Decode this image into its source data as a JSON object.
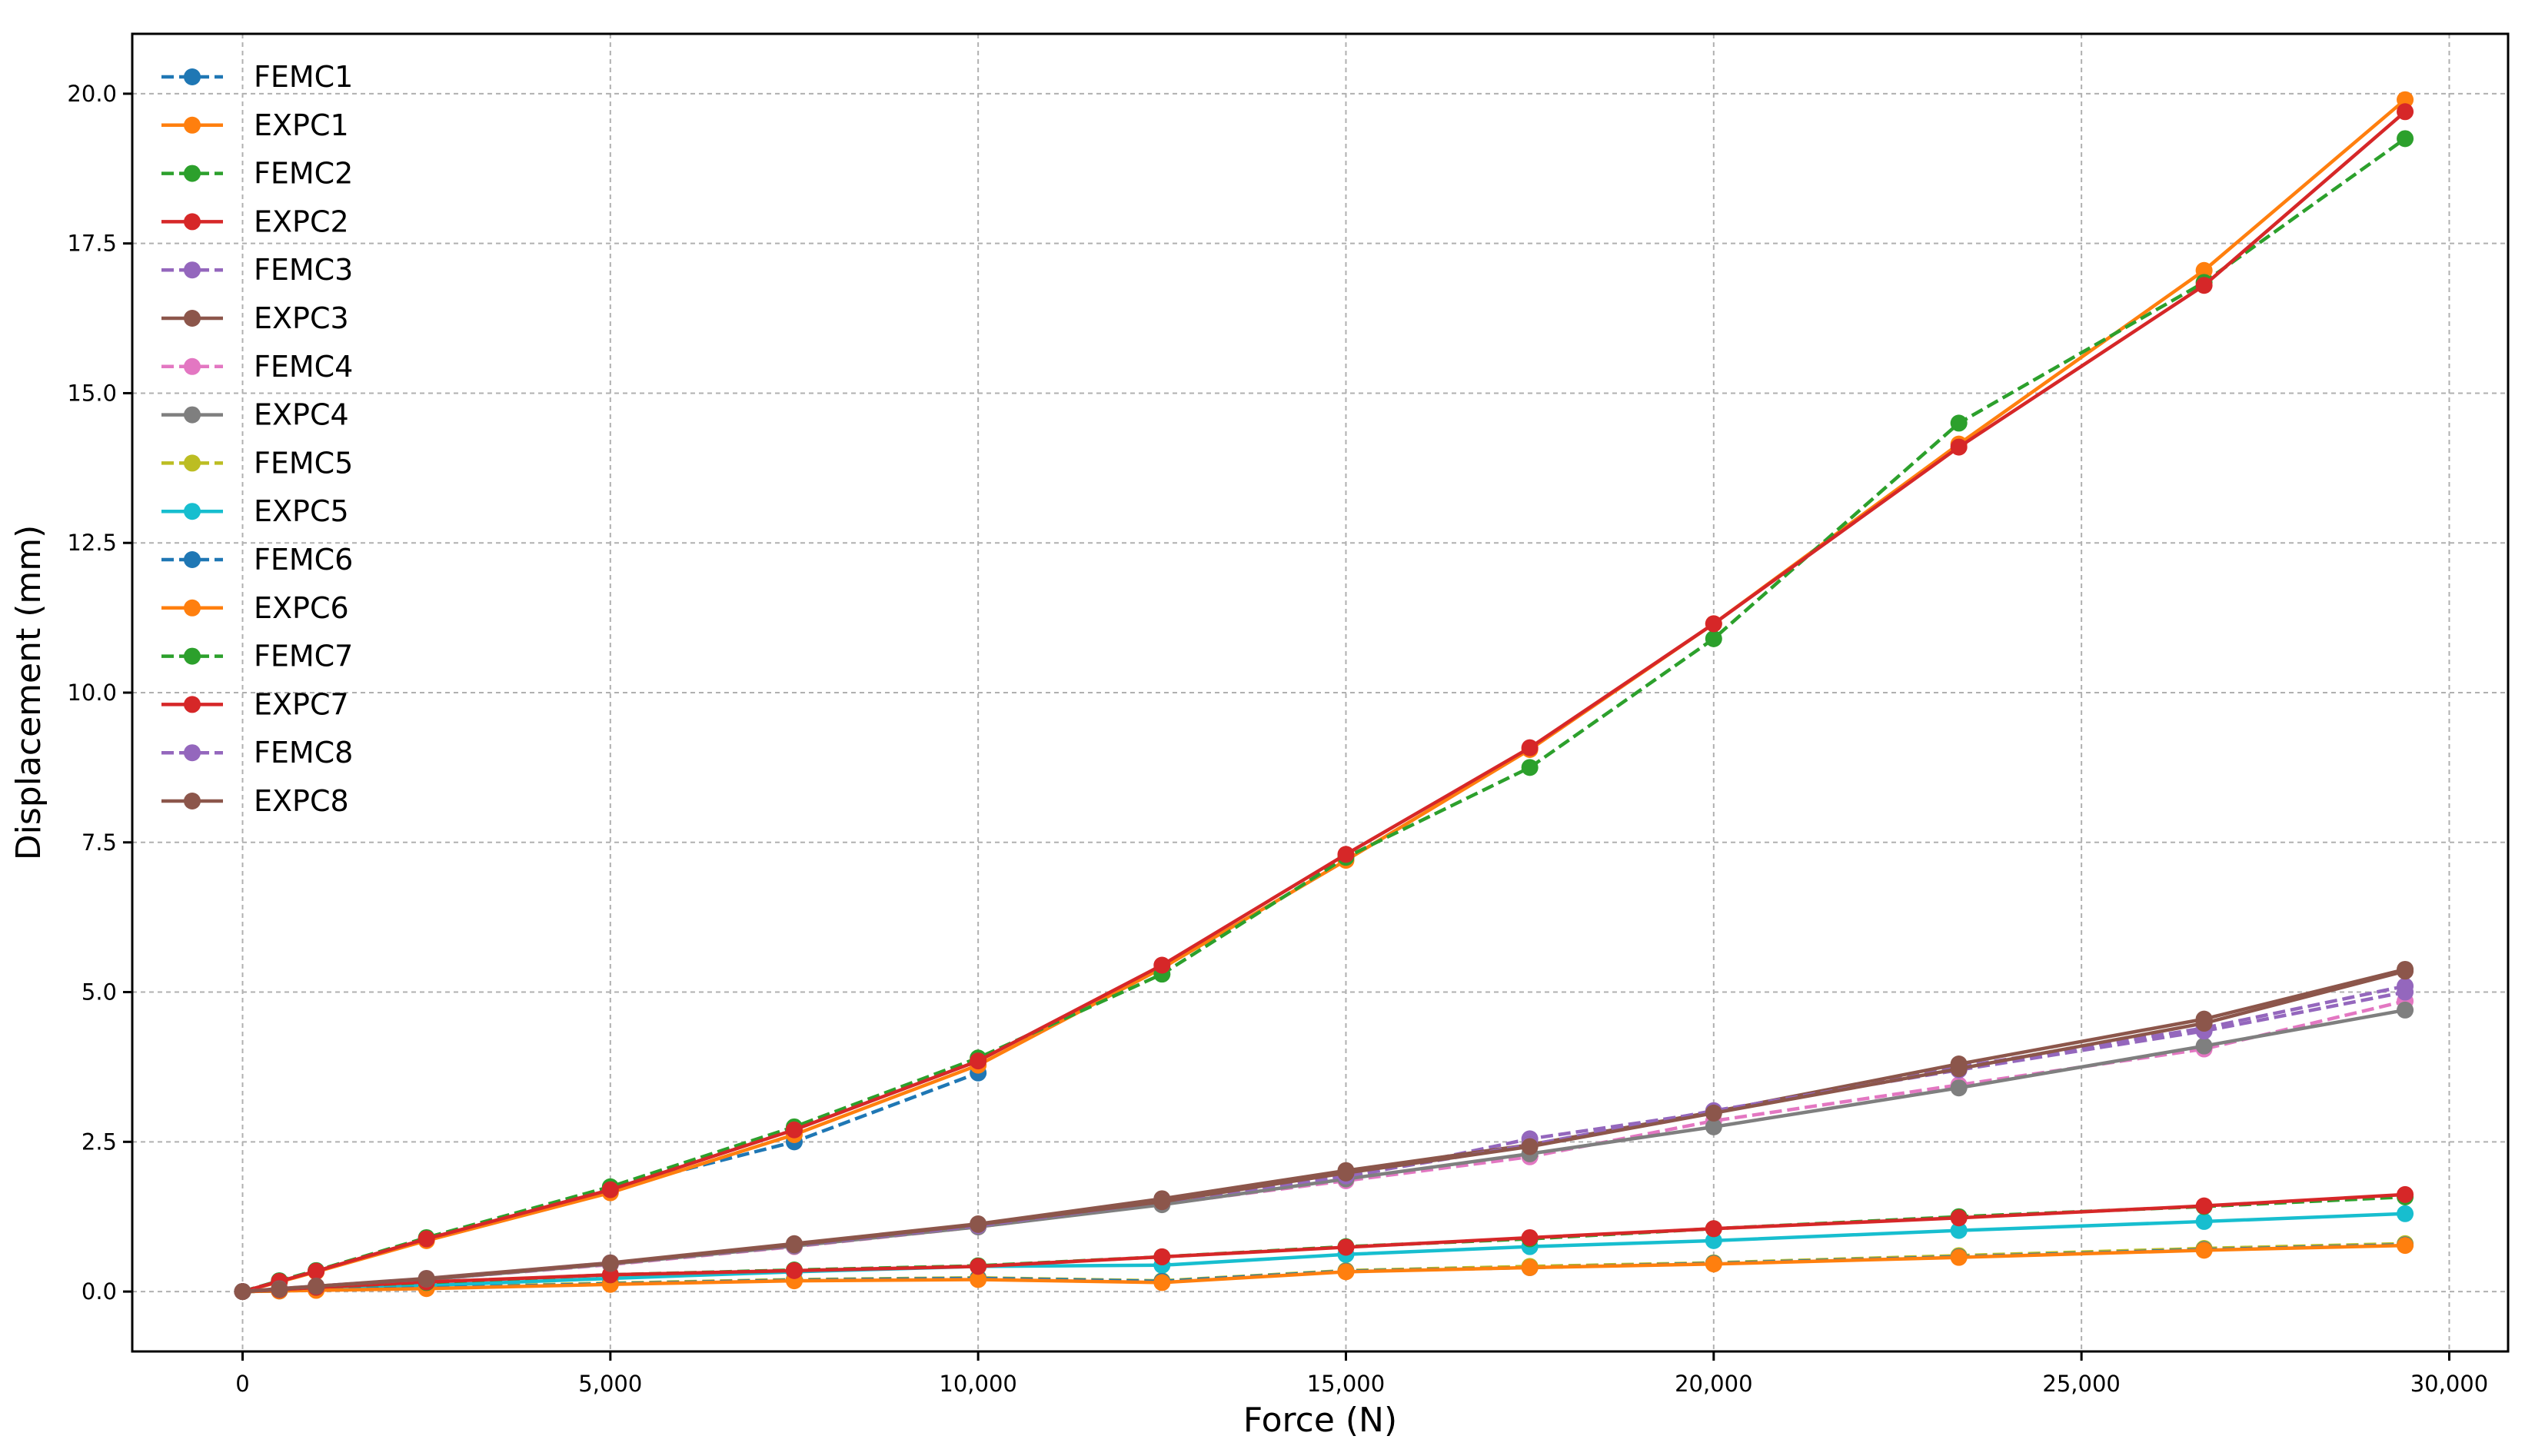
{
  "chart_data": {
    "type": "line",
    "title": "",
    "xlabel": "Force (N)",
    "ylabel": "Displacement (mm)",
    "xlim": [
      -1500,
      30800
    ],
    "ylim": [
      -1.0,
      21.0
    ],
    "xticks": [
      0,
      5000,
      10000,
      15000,
      20000,
      25000,
      30000
    ],
    "xtick_labels": [
      "0",
      "5,000",
      "10,000",
      "15,000",
      "20,000",
      "25,000",
      "30,000"
    ],
    "yticks": [
      0,
      2.5,
      5,
      7.5,
      10,
      12.5,
      15,
      17.5,
      20
    ],
    "ytick_labels": [
      "0.0",
      "2.5",
      "5.0",
      "7.5",
      "10.0",
      "12.5",
      "15.0",
      "17.5",
      "20.0"
    ],
    "grid": true,
    "legend_position": "top-left",
    "series": [
      {
        "name": "FEMC1",
        "color": "#1f77b4",
        "style": "dashed",
        "x": [
          0,
          500,
          1000,
          2500,
          5000,
          7500,
          10000
        ],
        "y": [
          0,
          0.18,
          0.35,
          0.88,
          1.72,
          2.5,
          3.65
        ]
      },
      {
        "name": "EXPC1",
        "color": "#ff7f0e",
        "style": "solid",
        "x": [
          0,
          500,
          1000,
          2500,
          5000,
          7500,
          10000,
          12500,
          15000,
          17500,
          20000,
          23333,
          26667,
          29400
        ],
        "y": [
          0,
          0.16,
          0.33,
          0.85,
          1.65,
          2.62,
          3.78,
          5.4,
          7.2,
          9.05,
          11.15,
          14.15,
          17.05,
          19.9
        ]
      },
      {
        "name": "FEMC2",
        "color": "#2ca02c",
        "style": "dashed",
        "x": [
          0,
          500,
          1000,
          2500,
          5000,
          7500,
          10000,
          12500,
          15000,
          17500,
          20000,
          23333,
          26667,
          29400
        ],
        "y": [
          0,
          0.18,
          0.35,
          0.9,
          1.75,
          2.75,
          3.9,
          5.3,
          7.25,
          8.75,
          10.9,
          14.5,
          16.85,
          19.25
        ]
      },
      {
        "name": "EXPC2",
        "color": "#d62728",
        "style": "solid",
        "x": [
          0,
          500,
          1000,
          2500,
          5000,
          7500,
          10000,
          12500,
          15000,
          17500,
          20000,
          23333,
          26667,
          29400
        ],
        "y": [
          0,
          0.17,
          0.34,
          0.88,
          1.7,
          2.7,
          3.85,
          5.45,
          7.3,
          9.08,
          11.15,
          14.1,
          16.8,
          19.7
        ]
      },
      {
        "name": "FEMC3",
        "color": "#9467bd",
        "style": "dashed",
        "x": [
          0,
          500,
          1000,
          2500,
          5000,
          7500,
          10000,
          12500,
          15000,
          17500,
          20000,
          23333,
          26667,
          29400
        ],
        "y": [
          0,
          0.04,
          0.08,
          0.2,
          0.46,
          0.76,
          1.1,
          1.48,
          1.9,
          2.55,
          3.0,
          3.75,
          4.4,
          5.1
        ]
      },
      {
        "name": "EXPC3",
        "color": "#8c564b",
        "style": "solid",
        "x": [
          0,
          500,
          1000,
          2500,
          5000,
          7500,
          10000,
          12500,
          15000,
          17500,
          20000,
          23333,
          26667,
          29400
        ],
        "y": [
          0,
          0.05,
          0.09,
          0.22,
          0.48,
          0.8,
          1.13,
          1.55,
          2.02,
          2.45,
          3.0,
          3.8,
          4.55,
          5.38
        ]
      },
      {
        "name": "FEMC4",
        "color": "#e377c2",
        "style": "dashed",
        "x": [
          0,
          500,
          1000,
          2500,
          5000,
          7500,
          10000,
          12500,
          15000,
          17500,
          20000,
          23333,
          26667,
          29400
        ],
        "y": [
          0,
          0.04,
          0.08,
          0.2,
          0.45,
          0.75,
          1.08,
          1.46,
          1.85,
          2.25,
          2.85,
          3.45,
          4.05,
          4.85
        ]
      },
      {
        "name": "EXPC4",
        "color": "#7f7f7f",
        "style": "solid",
        "x": [
          0,
          500,
          1000,
          2500,
          5000,
          7500,
          10000,
          12500,
          15000,
          17500,
          20000,
          23333,
          26667,
          29400
        ],
        "y": [
          0,
          0.04,
          0.08,
          0.2,
          0.46,
          0.76,
          1.08,
          1.45,
          1.88,
          2.3,
          2.75,
          3.4,
          4.1,
          4.7
        ]
      },
      {
        "name": "FEMC5",
        "color": "#bcbd22",
        "style": "dashed",
        "x": [
          0,
          500,
          1000,
          2500,
          5000,
          7500,
          10000,
          12500,
          15000,
          17500,
          20000,
          23333,
          26667,
          29400
        ],
        "y": [
          0,
          0.01,
          0.03,
          0.07,
          0.14,
          0.2,
          0.23,
          0.18,
          0.35,
          0.42,
          0.48,
          0.6,
          0.72,
          0.8
        ]
      },
      {
        "name": "EXPC5",
        "color": "#17becf",
        "style": "solid",
        "x": [
          0,
          500,
          1000,
          2500,
          5000,
          7500,
          10000,
          12500,
          15000,
          17500,
          20000,
          23333,
          26667,
          29400
        ],
        "y": [
          0,
          0.02,
          0.05,
          0.1,
          0.22,
          0.33,
          0.42,
          0.44,
          0.62,
          0.75,
          0.85,
          1.02,
          1.17,
          1.3
        ]
      },
      {
        "name": "FEMC6",
        "color": "#1f77b4",
        "style": "dashed",
        "x": [
          0,
          500,
          1000,
          2500,
          5000,
          7500,
          10000,
          12500,
          15000,
          17500,
          20000,
          23333,
          26667,
          29400
        ],
        "y": [
          0,
          0.01,
          0.03,
          0.06,
          0.13,
          0.19,
          0.22,
          0.17,
          0.34,
          0.4,
          0.47,
          0.58,
          0.7,
          0.78
        ]
      },
      {
        "name": "EXPC6",
        "color": "#ff7f0e",
        "style": "solid",
        "x": [
          0,
          500,
          1000,
          2500,
          5000,
          7500,
          10000,
          12500,
          15000,
          17500,
          20000,
          23333,
          26667,
          29400
        ],
        "y": [
          0,
          0.01,
          0.02,
          0.05,
          0.12,
          0.18,
          0.2,
          0.15,
          0.33,
          0.4,
          0.46,
          0.57,
          0.69,
          0.77
        ]
      },
      {
        "name": "FEMC7",
        "color": "#2ca02c",
        "style": "dashed",
        "x": [
          0,
          500,
          1000,
          2500,
          5000,
          7500,
          10000,
          12500,
          15000,
          17500,
          20000,
          23333,
          26667,
          29400
        ],
        "y": [
          0,
          0.03,
          0.07,
          0.15,
          0.28,
          0.36,
          0.43,
          0.58,
          0.75,
          0.88,
          1.05,
          1.25,
          1.42,
          1.58
        ]
      },
      {
        "name": "EXPC7",
        "color": "#d62728",
        "style": "solid",
        "x": [
          0,
          500,
          1000,
          2500,
          5000,
          7500,
          10000,
          12500,
          15000,
          17500,
          20000,
          23333,
          26667,
          29400
        ],
        "y": [
          0,
          0.03,
          0.07,
          0.16,
          0.28,
          0.35,
          0.42,
          0.58,
          0.74,
          0.9,
          1.05,
          1.23,
          1.43,
          1.62
        ]
      },
      {
        "name": "FEMC8",
        "color": "#9467bd",
        "style": "dashed",
        "x": [
          0,
          500,
          1000,
          2500,
          5000,
          7500,
          10000,
          12500,
          15000,
          17500,
          20000,
          23333,
          26667,
          29400
        ],
        "y": [
          0,
          0.04,
          0.09,
          0.21,
          0.47,
          0.77,
          1.1,
          1.5,
          1.93,
          2.45,
          3.02,
          3.7,
          4.35,
          5.0
        ]
      },
      {
        "name": "EXPC8",
        "color": "#8c564b",
        "style": "solid",
        "x": [
          0,
          500,
          1000,
          2500,
          5000,
          7500,
          10000,
          12500,
          15000,
          17500,
          20000,
          23333,
          26667,
          29400
        ],
        "y": [
          0,
          0.04,
          0.09,
          0.21,
          0.47,
          0.78,
          1.12,
          1.5,
          1.98,
          2.42,
          2.98,
          3.72,
          4.48,
          5.35
        ]
      }
    ]
  }
}
